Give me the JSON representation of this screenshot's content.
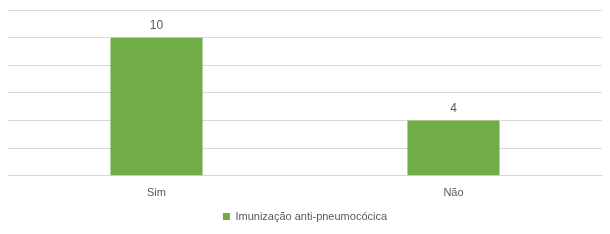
{
  "chart_data": {
    "type": "bar",
    "categories": [
      "Sim",
      "Não"
    ],
    "series": [
      {
        "name": "Imunização anti-pneumocócica",
        "color": "#70ad47",
        "values": [
          10,
          4
        ]
      }
    ],
    "ylim": [
      0,
      12
    ],
    "yticks": [
      0,
      2,
      4,
      6,
      8,
      10,
      12
    ],
    "grid": true,
    "legend": "bottom",
    "data_labels": true,
    "tick_labels": "x"
  }
}
